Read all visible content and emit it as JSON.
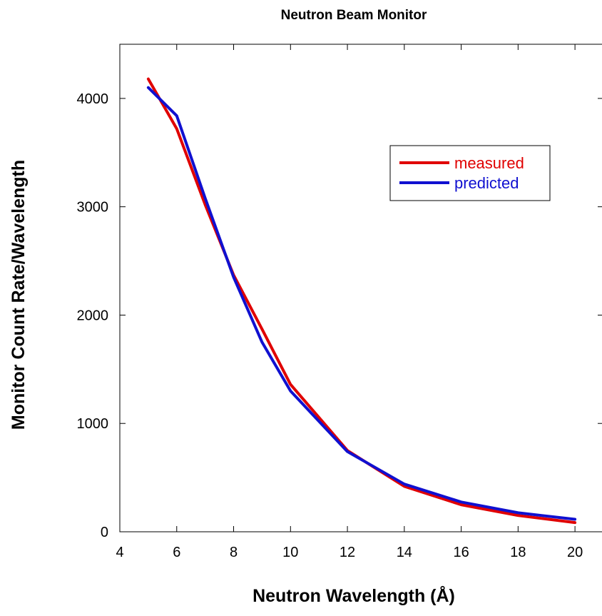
{
  "chart_data": {
    "type": "line",
    "title": "Neutron Beam Monitor",
    "xlabel": "Neutron Wavelength (Å)",
    "ylabel": "Monitor Count Rate/Wavelength",
    "xlim": [
      4,
      21
    ],
    "ylim": [
      0,
      4500
    ],
    "xticks": [
      4,
      6,
      8,
      10,
      12,
      14,
      16,
      18,
      20
    ],
    "yticks": [
      0,
      1000,
      2000,
      3000,
      4000
    ],
    "grid": false,
    "legend_position": "upper right",
    "series": [
      {
        "name": "measured",
        "color": "#e00000",
        "x": [
          5,
          6,
          7,
          8,
          9,
          10,
          12,
          14,
          16,
          18,
          20
        ],
        "y": [
          4180,
          3720,
          3020,
          2370,
          1870,
          1360,
          750,
          420,
          250,
          150,
          85
        ]
      },
      {
        "name": "predicted",
        "color": "#1010d0",
        "x": [
          5,
          6,
          7,
          8,
          9,
          10,
          12,
          14,
          16,
          18,
          20
        ],
        "y": [
          4100,
          3840,
          3080,
          2350,
          1750,
          1300,
          740,
          440,
          275,
          175,
          115
        ]
      }
    ]
  }
}
